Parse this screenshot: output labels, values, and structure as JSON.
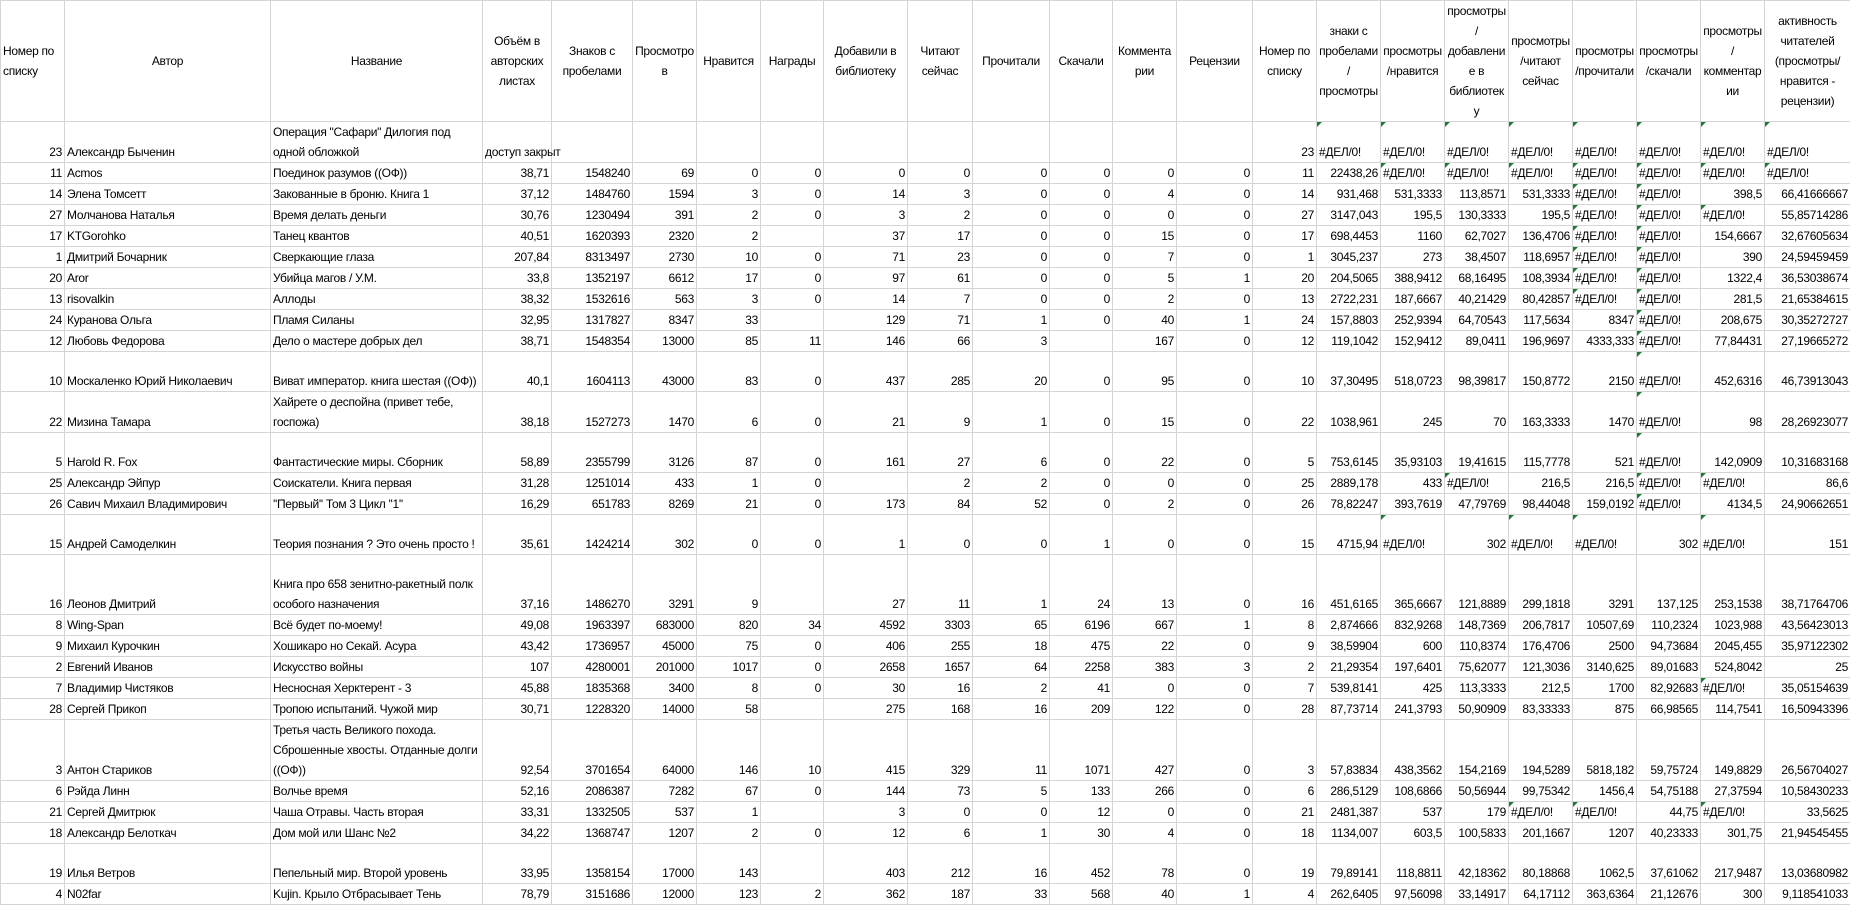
{
  "headers": [
    "Номер по списку",
    "Автор",
    "Название",
    "Объём в авторских листах",
    "Знаков с пробелами",
    "Просмотров",
    "Нравится",
    "Награды",
    "Добавили в библиотеку",
    "Читают сейчас",
    "Прочитали",
    "Скачали",
    "Комментарии",
    "Рецензии",
    "Номер по списку",
    "знаки с пробелами/просмотры",
    "просмотры/нравится",
    "просмотры/добавление в библиотеку",
    "просмотры/читают сейчас",
    "просмотры/прочитали",
    "просмотры/скачали",
    "просмотры/комментарии",
    "активность читателей (просмотры/нравится - рецензии)"
  ],
  "rows": [
    [
      "23",
      "Александр Быченин",
      "Операция \"Сафари\" Дилогия под одной обложкой",
      "доступ закрыт",
      "",
      "",
      "",
      "",
      "",
      "",
      "",
      "",
      "",
      "",
      "23",
      "#ДЕЛ/0!",
      "#ДЕЛ/0!",
      "#ДЕЛ/0!",
      "#ДЕЛ/0!",
      "#ДЕЛ/0!",
      "#ДЕЛ/0!",
      "#ДЕЛ/0!",
      "#ДЕЛ/0!"
    ],
    [
      "11",
      "Acmos",
      "Поединок разумов ((ОФ))",
      "38,71",
      "1548240",
      "69",
      "0",
      "0",
      "0",
      "0",
      "0",
      "0",
      "0",
      "0",
      "11",
      "22438,26",
      "#ДЕЛ/0!",
      "#ДЕЛ/0!",
      "#ДЕЛ/0!",
      "#ДЕЛ/0!",
      "#ДЕЛ/0!",
      "#ДЕЛ/0!",
      "#ДЕЛ/0!"
    ],
    [
      "14",
      "Элена Томсетт",
      "Закованные в броню. Книга 1",
      "37,12",
      "1484760",
      "1594",
      "3",
      "0",
      "14",
      "3",
      "0",
      "0",
      "4",
      "0",
      "14",
      "931,468",
      "531,3333",
      "113,8571",
      "531,3333",
      "#ДЕЛ/0!",
      "#ДЕЛ/0!",
      "398,5",
      "66,41666667"
    ],
    [
      "27",
      "Молчанова  Наталья",
      "Время  делать деньги",
      "30,76",
      "1230494",
      "391",
      "2",
      "0",
      "3",
      "2",
      "0",
      "0",
      "0",
      "0",
      "27",
      "3147,043",
      "195,5",
      "130,3333",
      "195,5",
      "#ДЕЛ/0!",
      "#ДЕЛ/0!",
      "#ДЕЛ/0!",
      "55,85714286"
    ],
    [
      "17",
      "KTGorohko",
      "Танец квантов",
      "40,51",
      "1620393",
      "2320",
      "2",
      "",
      "37",
      "17",
      "0",
      "0",
      "15",
      "0",
      "17",
      "698,4453",
      "1160",
      "62,7027",
      "136,4706",
      "#ДЕЛ/0!",
      "#ДЕЛ/0!",
      "154,6667",
      "32,67605634"
    ],
    [
      "1",
      "Дмитрий Бочарник",
      "Сверкающие глаза",
      "207,84",
      "8313497",
      "2730",
      "10",
      "0",
      "71",
      "23",
      "0",
      "0",
      "7",
      "0",
      "1",
      "3045,237",
      "273",
      "38,4507",
      "118,6957",
      "#ДЕЛ/0!",
      "#ДЕЛ/0!",
      "390",
      "24,59459459"
    ],
    [
      "20",
      "Aror",
      "Убийца магов / У.М.",
      "33,8",
      "1352197",
      "6612",
      "17",
      "0",
      "97",
      "61",
      "0",
      "0",
      "5",
      "1",
      "20",
      "204,5065",
      "388,9412",
      "68,16495",
      "108,3934",
      "#ДЕЛ/0!",
      "#ДЕЛ/0!",
      "1322,4",
      "36,53038674"
    ],
    [
      "13",
      "risovalkin",
      "Аллоды",
      "38,32",
      "1532616",
      "563",
      "3",
      "0",
      "14",
      "7",
      "0",
      "0",
      "2",
      "0",
      "13",
      "2722,231",
      "187,6667",
      "40,21429",
      "80,42857",
      "#ДЕЛ/0!",
      "#ДЕЛ/0!",
      "281,5",
      "21,65384615"
    ],
    [
      "24",
      "Куранова Ольга",
      "Пламя Силаны",
      "32,95",
      "1317827",
      "8347",
      "33",
      "",
      "129",
      "71",
      "1",
      "0",
      "40",
      "1",
      "24",
      "157,8803",
      "252,9394",
      "64,70543",
      "117,5634",
      "8347",
      "#ДЕЛ/0!",
      "208,675",
      "30,35272727"
    ],
    [
      "12",
      "Любовь Федорова",
      "Дело о мастере добрых дел",
      "38,71",
      "1548354",
      "13000",
      "85",
      "11",
      "146",
      "66",
      "3",
      "",
      "167",
      "0",
      "12",
      "119,1042",
      "152,9412",
      "89,0411",
      "196,9697",
      "4333,333",
      "#ДЕЛ/0!",
      "77,84431",
      "27,19665272"
    ],
    [
      "10",
      "Москаленко Юрий Николаевич",
      "Виват император. книга шестая ((ОФ))",
      "40,1",
      "1604113",
      "43000",
      "83",
      "0",
      "437",
      "285",
      "20",
      "0",
      "95",
      "0",
      "10",
      "37,30495",
      "518,0723",
      "98,39817",
      "150,8772",
      "2150",
      "#ДЕЛ/0!",
      "452,6316",
      "46,73913043"
    ],
    [
      "22",
      "Мизина Тамара",
      "Хайрете о деспойна (привет тебе,   госпожа)",
      "38,18",
      "1527273",
      "1470",
      "6",
      "0",
      "21",
      "9",
      "1",
      "0",
      "15",
      "0",
      "22",
      "1038,961",
      "245",
      "70",
      "163,3333",
      "1470",
      "#ДЕЛ/0!",
      "98",
      "28,26923077"
    ],
    [
      "5",
      "Harold R. Fox",
      "Фантастические миры. Сборник",
      "58,89",
      "2355799",
      "3126",
      "87",
      "0",
      "161",
      "27",
      "6",
      "0",
      "22",
      "0",
      "5",
      "753,6145",
      "35,93103",
      "19,41615",
      "115,7778",
      "521",
      "#ДЕЛ/0!",
      "142,0909",
      "10,31683168"
    ],
    [
      "25",
      "Александр Эйпур",
      "Соискатели. Книга первая",
      "31,28",
      "1251014",
      "433",
      "1",
      "0",
      "",
      "2",
      "2",
      "0",
      "0",
      "0",
      "25",
      "2889,178",
      "433",
      "#ДЕЛ/0!",
      "216,5",
      "216,5",
      "#ДЕЛ/0!",
      "#ДЕЛ/0!",
      "86,6"
    ],
    [
      "26",
      "Савич   Михаил Владимирович",
      "''Первый''  Том 3 Цикл ''1''",
      "16,29",
      "651783",
      "8269",
      "21",
      "0",
      "173",
      "84",
      "52",
      "0",
      "2",
      "0",
      "26",
      "78,82247",
      "393,7619",
      "47,79769",
      "98,44048",
      "159,0192",
      "#ДЕЛ/0!",
      "4134,5",
      "24,90662651"
    ],
    [
      "15",
      "Андрей Самоделкин",
      "Теория познания ? Это очень просто !",
      "35,61",
      "1424214",
      "302",
      "0",
      "0",
      "1",
      "0",
      "0",
      "1",
      "0",
      "0",
      "15",
      "4715,94",
      "#ДЕЛ/0!",
      "302",
      "#ДЕЛ/0!",
      "#ДЕЛ/0!",
      "302",
      "#ДЕЛ/0!",
      "151"
    ],
    [
      "16",
      "Леонов Дмитрий",
      "Книга про 658 зенитно-ракетный полк   особого назначения",
      "37,16",
      "1486270",
      "3291",
      "9",
      "",
      "27",
      "11",
      "1",
      "24",
      "13",
      "0",
      "16",
      "451,6165",
      "365,6667",
      "121,8889",
      "299,1818",
      "3291",
      "137,125",
      "253,1538",
      "38,71764706"
    ],
    [
      "8",
      "Wing-Span",
      "Всё будет по-моему!",
      "49,08",
      "1963397",
      "683000",
      "820",
      "34",
      "4592",
      "3303",
      "65",
      "6196",
      "667",
      "1",
      "8",
      "2,874666",
      "832,9268",
      "148,7369",
      "206,7817",
      "10507,69",
      "110,2324",
      "1023,988",
      "43,56423013"
    ],
    [
      "9",
      "Михаил   Курочкин",
      "Хошикаро   но Секай. Асура",
      "43,42",
      "1736957",
      "45000",
      "75",
      "0",
      "406",
      "255",
      "18",
      "475",
      "22",
      "0",
      "9",
      "38,59904",
      "600",
      "110,8374",
      "176,4706",
      "2500",
      "94,73684",
      "2045,455",
      "35,97122302"
    ],
    [
      "2",
      "Евгений Иванов",
      "Искусство войны",
      "107",
      "4280001",
      "201000",
      "1017",
      "0",
      "2658",
      "1657",
      "64",
      "2258",
      "383",
      "3",
      "2",
      "21,29354",
      "197,6401",
      "75,62077",
      "121,3036",
      "3140,625",
      "89,01683",
      "524,8042",
      "25"
    ],
    [
      "7",
      "Владимир Чистяков",
      "Несносная Херктерент - 3",
      "45,88",
      "1835368",
      "3400",
      "8",
      "0",
      "30",
      "16",
      "2",
      "41",
      "0",
      "0",
      "7",
      "539,8141",
      "425",
      "113,3333",
      "212,5",
      "1700",
      "82,92683",
      "#ДЕЛ/0!",
      "35,05154639"
    ],
    [
      "28",
      "Сергей Прикоп",
      "Тропою испытаний. Чужой мир",
      "30,71",
      "1228320",
      "14000",
      "58",
      "",
      "275",
      "168",
      "16",
      "209",
      "122",
      "0",
      "28",
      "87,73714",
      "241,3793",
      "50,90909",
      "83,33333",
      "875",
      "66,98565",
      "114,7541",
      "16,50943396"
    ],
    [
      "3",
      "Антон Стариков",
      "Третья часть Великого похода. Сброшенные хвосты. Отданные долги ((ОФ))",
      "92,54",
      "3701654",
      "64000",
      "146",
      "10",
      "415",
      "329",
      "11",
      "1071",
      "427",
      "0",
      "3",
      "57,83834",
      "438,3562",
      "154,2169",
      "194,5289",
      "5818,182",
      "59,75724",
      "149,8829",
      "26,56704027"
    ],
    [
      "6",
      "Рэйда Линн",
      "Волчье время",
      "52,16",
      "2086387",
      "7282",
      "67",
      "0",
      "144",
      "73",
      "5",
      "133",
      "266",
      "0",
      "6",
      "286,5129",
      "108,6866",
      "50,56944",
      "99,75342",
      "1456,4",
      "54,75188",
      "27,37594",
      "10,58430233"
    ],
    [
      "21",
      "Сергей Дмитрюк",
      "Чаша Отравы. Часть вторая",
      "33,31",
      "1332505",
      "537",
      "1",
      "",
      "3",
      "0",
      "0",
      "12",
      "0",
      "0",
      "21",
      "2481,387",
      "537",
      "179",
      "#ДЕЛ/0!",
      "#ДЕЛ/0!",
      "44,75",
      "#ДЕЛ/0!",
      "33,5625"
    ],
    [
      "18",
      "Александр Белоткач",
      "Дом мой или Шанс №2",
      "34,22",
      "1368747",
      "1207",
      "2",
      "0",
      "12",
      "6",
      "1",
      "30",
      "4",
      "0",
      "18",
      "1134,007",
      "603,5",
      "100,5833",
      "201,1667",
      "1207",
      "40,23333",
      "301,75",
      "21,94545455"
    ],
    [
      "19",
      "Илья Ветров",
      "Пепельный мир. Второй уровень",
      "33,95",
      "1358154",
      "17000",
      "143",
      "",
      "403",
      "212",
      "16",
      "452",
      "78",
      "0",
      "19",
      "79,89141",
      "118,8811",
      "42,18362",
      "80,18868",
      "1062,5",
      "37,61062",
      "217,9487",
      "13,03680982"
    ],
    [
      "4",
      "N02far",
      "Kujin. Крыло Отбрасывает Тень",
      "78,79",
      "3151686",
      "12000",
      "123",
      "2",
      "362",
      "187",
      "33",
      "568",
      "40",
      "1",
      "4",
      "262,6405",
      "97,56098",
      "33,14917",
      "64,17112",
      "363,6364",
      "21,12676",
      "300",
      "9,118541033"
    ]
  ],
  "colors": {
    "gridline": "#d4d4d4",
    "error_marker": "#1e7b34"
  }
}
